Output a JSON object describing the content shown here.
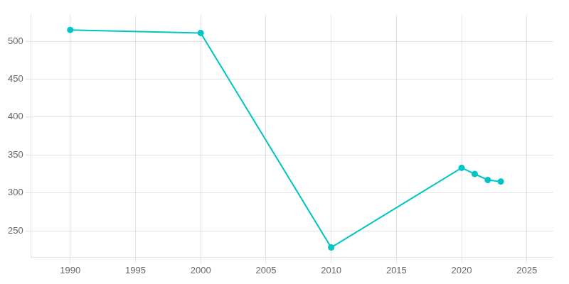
{
  "chart_data": {
    "type": "line",
    "x": [
      1990,
      2000,
      2010,
      2020,
      2021,
      2022,
      2023
    ],
    "values": [
      515,
      511,
      228,
      333,
      325,
      317,
      315
    ],
    "color": "#00C5C5",
    "marker": "circle",
    "line_style": "solid",
    "xlim": [
      1987,
      2027
    ],
    "ylim": [
      215,
      535
    ],
    "xticks": [
      1990,
      1995,
      2000,
      2005,
      2010,
      2015,
      2020,
      2025
    ],
    "yticks": [
      250,
      300,
      350,
      400,
      450,
      500
    ],
    "grid": true
  }
}
